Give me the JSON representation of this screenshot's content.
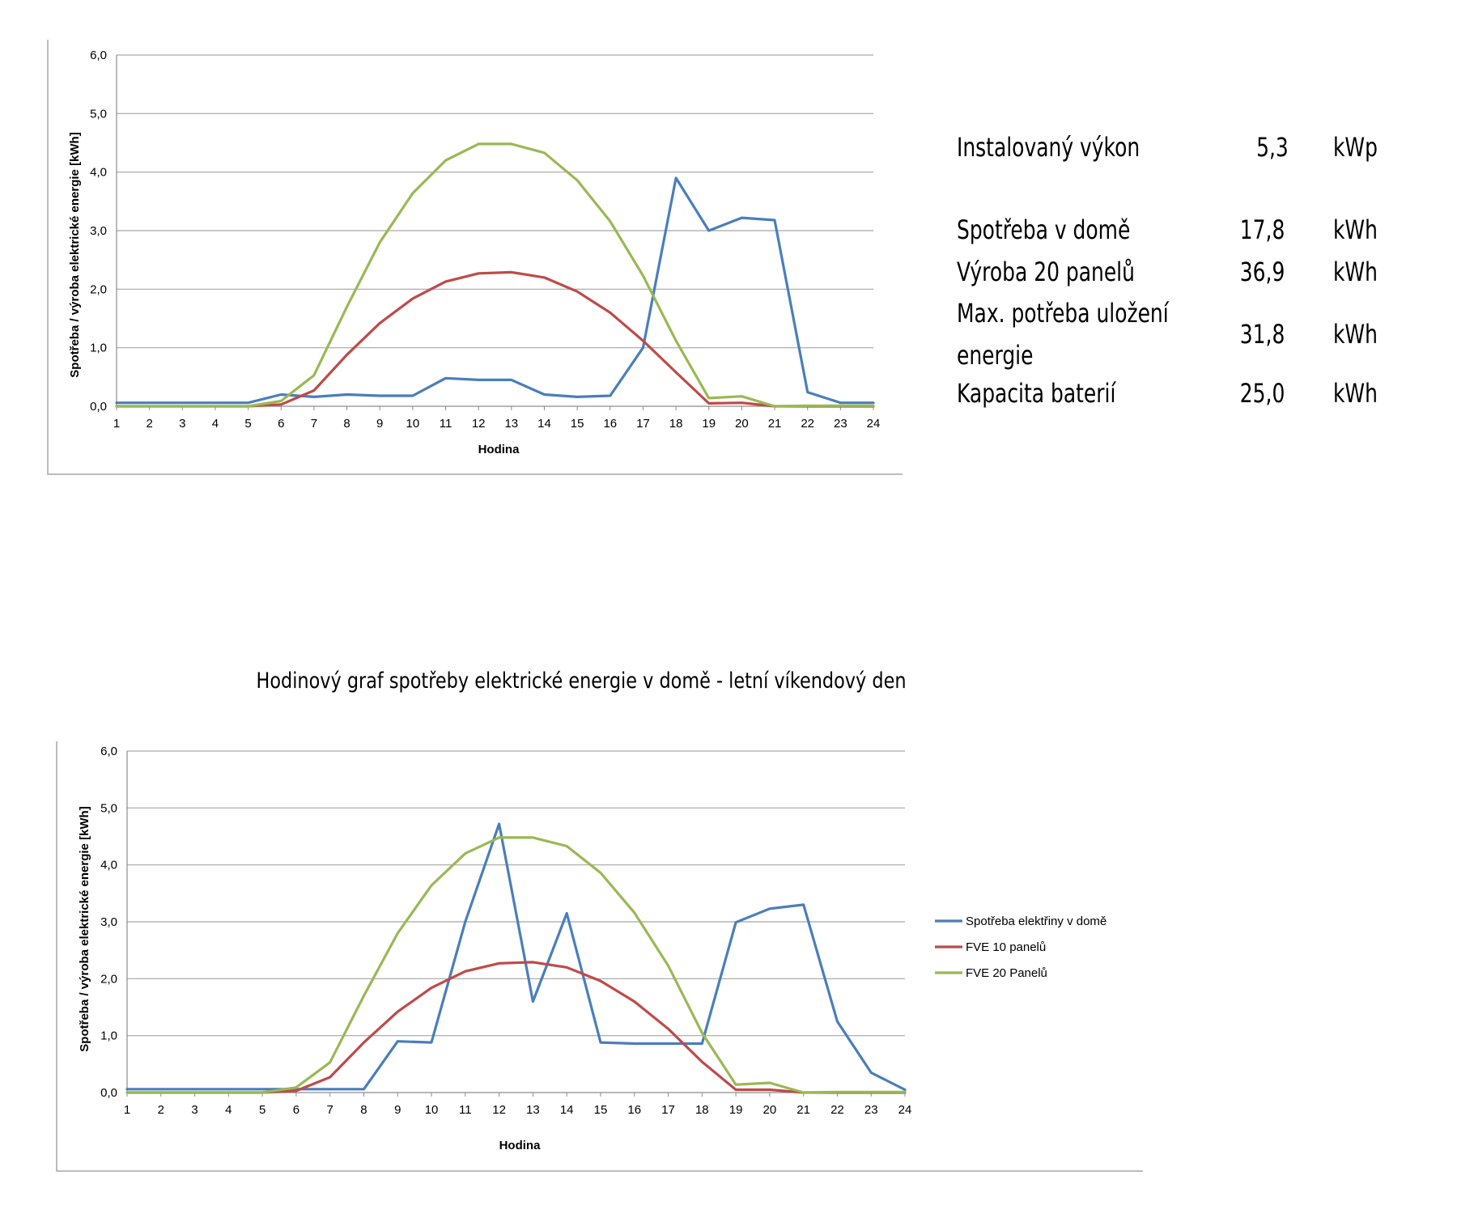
{
  "chart_data": [
    {
      "type": "line",
      "title": "",
      "xlabel": "Hodina",
      "ylabel": "Spotřeba / výroba elektrické energie [kWh]",
      "ylim": [
        0,
        6
      ],
      "yticks": [
        "0,0",
        "1,0",
        "2,0",
        "3,0",
        "4,0",
        "5,0",
        "6,0"
      ],
      "categories": [
        "1",
        "2",
        "3",
        "4",
        "5",
        "6",
        "7",
        "8",
        "9",
        "10",
        "11",
        "12",
        "13",
        "14",
        "15",
        "16",
        "17",
        "18",
        "19",
        "20",
        "21",
        "22",
        "23",
        "24"
      ],
      "series": [
        {
          "name": "Spotřeba elektřiny v domě",
          "color": "#4A7EBB",
          "values": [
            0.06,
            0.06,
            0.06,
            0.06,
            0.06,
            0.2,
            0.16,
            0.2,
            0.18,
            0.18,
            0.48,
            0.45,
            0.45,
            0.2,
            0.16,
            0.18,
            1.0,
            3.9,
            3.0,
            3.22,
            3.18,
            0.24,
            0.06,
            0.06
          ]
        },
        {
          "name": "FVE 10 panelů",
          "color": "#BE4B48",
          "values": [
            0,
            0,
            0,
            0,
            0,
            0.03,
            0.27,
            0.88,
            1.42,
            1.84,
            2.13,
            2.27,
            2.29,
            2.2,
            1.96,
            1.6,
            1.12,
            0.58,
            0.05,
            0.06,
            0,
            0,
            0,
            0
          ]
        },
        {
          "name": "FVE 20 Panelů",
          "color": "#98B954",
          "values": [
            0,
            0,
            0,
            0,
            0,
            0.09,
            0.53,
            1.7,
            2.8,
            3.64,
            4.2,
            4.48,
            4.48,
            4.33,
            3.86,
            3.16,
            2.23,
            1.12,
            0.14,
            0.17,
            0,
            0.01,
            0.01,
            0.01
          ]
        }
      ]
    },
    {
      "type": "line",
      "title": "Hodinový graf spotřeby elektrické energie v domě - letní víkendový den",
      "xlabel": "Hodina",
      "ylabel": "Spotřeba / výroba elektrické energie [kWh]",
      "ylim": [
        0,
        6
      ],
      "yticks": [
        "0,0",
        "1,0",
        "2,0",
        "3,0",
        "4,0",
        "5,0",
        "6,0"
      ],
      "categories": [
        "1",
        "2",
        "3",
        "4",
        "5",
        "6",
        "7",
        "8",
        "9",
        "10",
        "11",
        "12",
        "13",
        "14",
        "15",
        "16",
        "17",
        "18",
        "19",
        "20",
        "21",
        "22",
        "23",
        "24"
      ],
      "legend": "right",
      "series": [
        {
          "name": "Spotřeba elektřiny v domě",
          "color": "#4A7EBB",
          "values": [
            0.06,
            0.06,
            0.06,
            0.06,
            0.06,
            0.06,
            0.06,
            0.06,
            0.9,
            0.88,
            3.0,
            4.72,
            1.6,
            3.15,
            0.88,
            0.86,
            0.86,
            0.86,
            2.99,
            3.23,
            3.3,
            1.25,
            0.35,
            0.05
          ]
        },
        {
          "name": "FVE 10 panelů",
          "color": "#BE4B48",
          "values": [
            0,
            0,
            0,
            0,
            0,
            0.03,
            0.27,
            0.88,
            1.42,
            1.84,
            2.13,
            2.27,
            2.29,
            2.2,
            1.96,
            1.6,
            1.12,
            0.54,
            0.05,
            0.05,
            0,
            0,
            0,
            0
          ]
        },
        {
          "name": "FVE 20 Panelů",
          "color": "#98B954",
          "values": [
            0,
            0,
            0,
            0,
            0,
            0.09,
            0.53,
            1.7,
            2.8,
            3.64,
            4.2,
            4.48,
            4.48,
            4.33,
            3.86,
            3.16,
            2.23,
            1.05,
            0.14,
            0.17,
            0,
            0.01,
            0.01,
            0.01
          ]
        }
      ]
    }
  ],
  "summary": {
    "rows": [
      {
        "label": "Instalovaný výkon",
        "value": "5,3",
        "unit": "kWp"
      },
      {
        "label": "Spotřeba v domě",
        "value": "17,8",
        "unit": "kWh"
      },
      {
        "label": "Výroba 20 panelů",
        "value": "36,9",
        "unit": "kWh"
      },
      {
        "label": "Max. potřeba uložení",
        "label2": "energie",
        "value": "31,8",
        "unit": "kWh"
      },
      {
        "label": "Kapacita baterií",
        "value": "25,0",
        "unit": "kWh"
      }
    ]
  }
}
